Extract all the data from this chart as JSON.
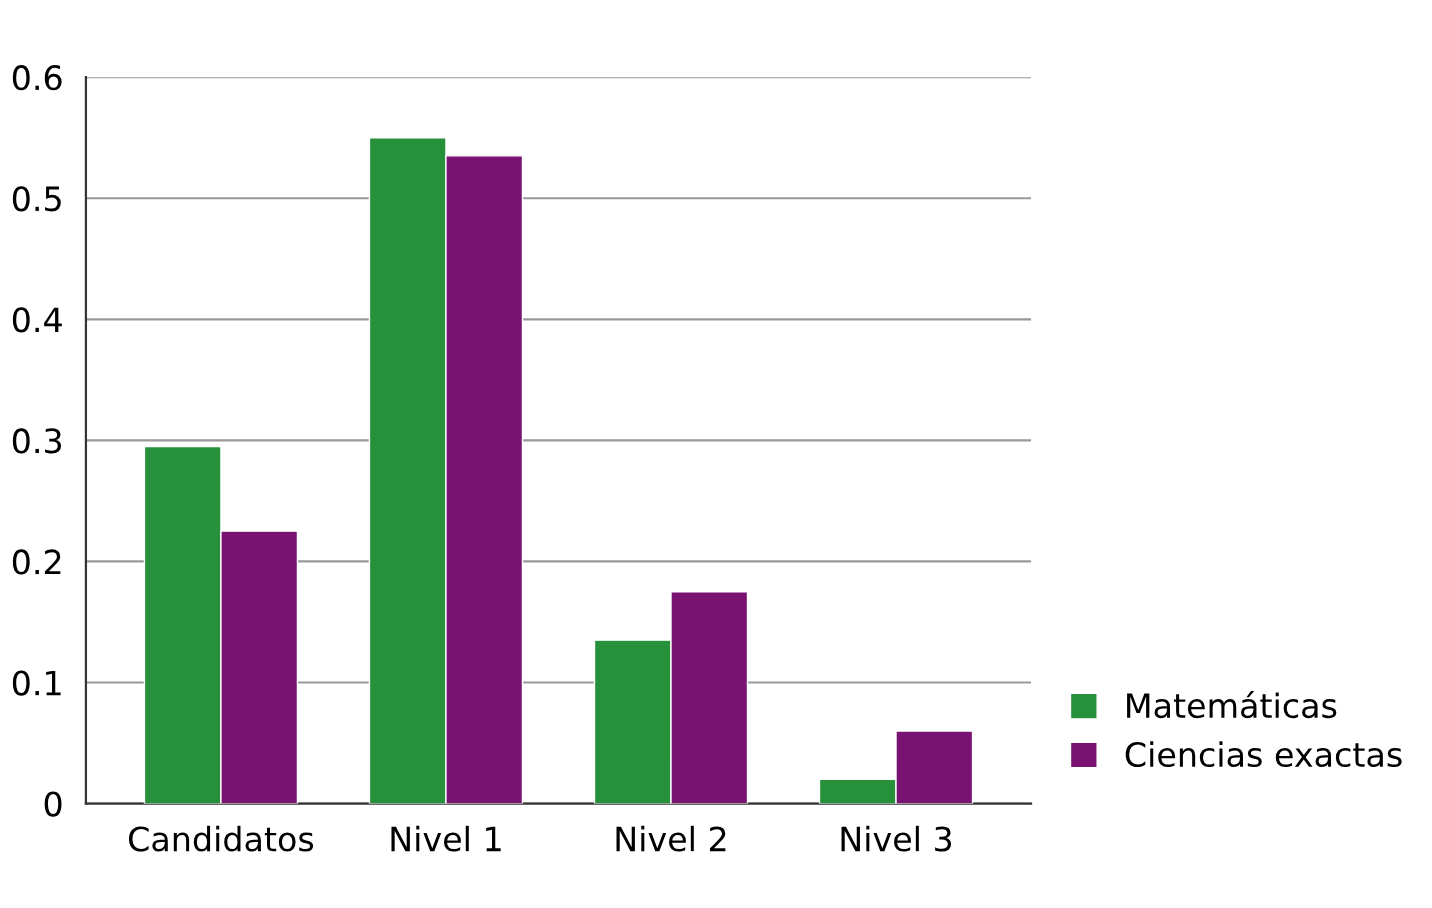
{
  "chart_data": {
    "type": "bar",
    "categories": [
      "Candidatos",
      "Nivel 1",
      "Nivel 2",
      "Nivel 3"
    ],
    "series": [
      {
        "name": "Matemáticas",
        "color": "#26903a",
        "values": [
          0.295,
          0.55,
          0.135,
          0.02
        ]
      },
      {
        "name": "Ciencias exactas",
        "color": "#7a1272",
        "values": [
          0.225,
          0.535,
          0.175,
          0.06
        ]
      }
    ],
    "ylim": [
      0,
      0.6
    ],
    "yticks": [
      {
        "value": 0,
        "label": "0"
      },
      0.1,
      0.2,
      0.3,
      0.4,
      0.5,
      0.6
    ],
    "grid": "y",
    "legend": "bottom right"
  }
}
